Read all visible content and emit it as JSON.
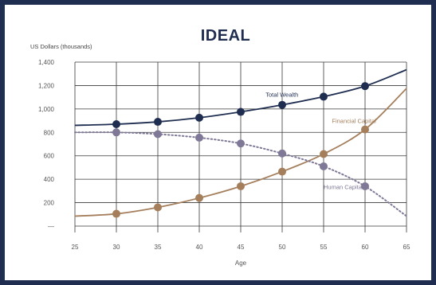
{
  "chart_data": {
    "type": "line",
    "title": "IDEAL",
    "ylabel": "US Dollars (thousands)",
    "xlabel": "Age",
    "x_ticks": [
      25,
      30,
      35,
      40,
      45,
      50,
      55,
      60,
      65
    ],
    "y_ticks": [
      0,
      200,
      400,
      600,
      800,
      1000,
      1200,
      1400
    ],
    "y_tick_labels": [
      "—",
      "200",
      "400",
      "600",
      "800",
      "1,000",
      "1,200",
      "1,400"
    ],
    "xlim": [
      25,
      65
    ],
    "ylim": [
      0,
      1400
    ],
    "grid": true,
    "series": [
      {
        "name": "Total Wealth",
        "color": "#1f2e50",
        "style": "solid",
        "curve_x": [
          25,
          30,
          35,
          40,
          45,
          50,
          55,
          60,
          65
        ],
        "curve_y": [
          860,
          870,
          890,
          925,
          975,
          1035,
          1105,
          1195,
          1335
        ],
        "marker_x": [
          30,
          35,
          40,
          45,
          50,
          55,
          60
        ],
        "marker_y": [
          870,
          890,
          925,
          975,
          1035,
          1105,
          1195
        ]
      },
      {
        "name": "Financial Capital",
        "color": "#a57f5c",
        "style": "solid",
        "curve_x": [
          25,
          30,
          35,
          40,
          45,
          50,
          55,
          60,
          65
        ],
        "curve_y": [
          85,
          105,
          160,
          240,
          340,
          465,
          615,
          825,
          1175
        ],
        "marker_x": [
          30,
          35,
          40,
          45,
          50,
          55,
          60
        ],
        "marker_y": [
          105,
          160,
          240,
          340,
          465,
          615,
          825
        ]
      },
      {
        "name": "Human Capital",
        "color": "#7f7896",
        "style": "dotted",
        "curve_x": [
          25,
          30,
          35,
          40,
          45,
          50,
          55,
          60,
          65
        ],
        "curve_y": [
          800,
          800,
          785,
          755,
          705,
          620,
          510,
          340,
          85
        ],
        "marker_x": [
          30,
          35,
          40,
          45,
          50,
          55,
          60
        ],
        "marker_y": [
          800,
          785,
          755,
          705,
          620,
          510,
          340
        ]
      }
    ],
    "annotations": [
      {
        "text": "Total Wealth",
        "x": 48,
        "y": 1105,
        "color": "#1f2e50"
      },
      {
        "text": "Financial Capital",
        "x": 56,
        "y": 880,
        "color": "#a57f5c"
      },
      {
        "text": "Human Capital",
        "x": 55,
        "y": 315,
        "color": "#7f7896"
      }
    ]
  }
}
